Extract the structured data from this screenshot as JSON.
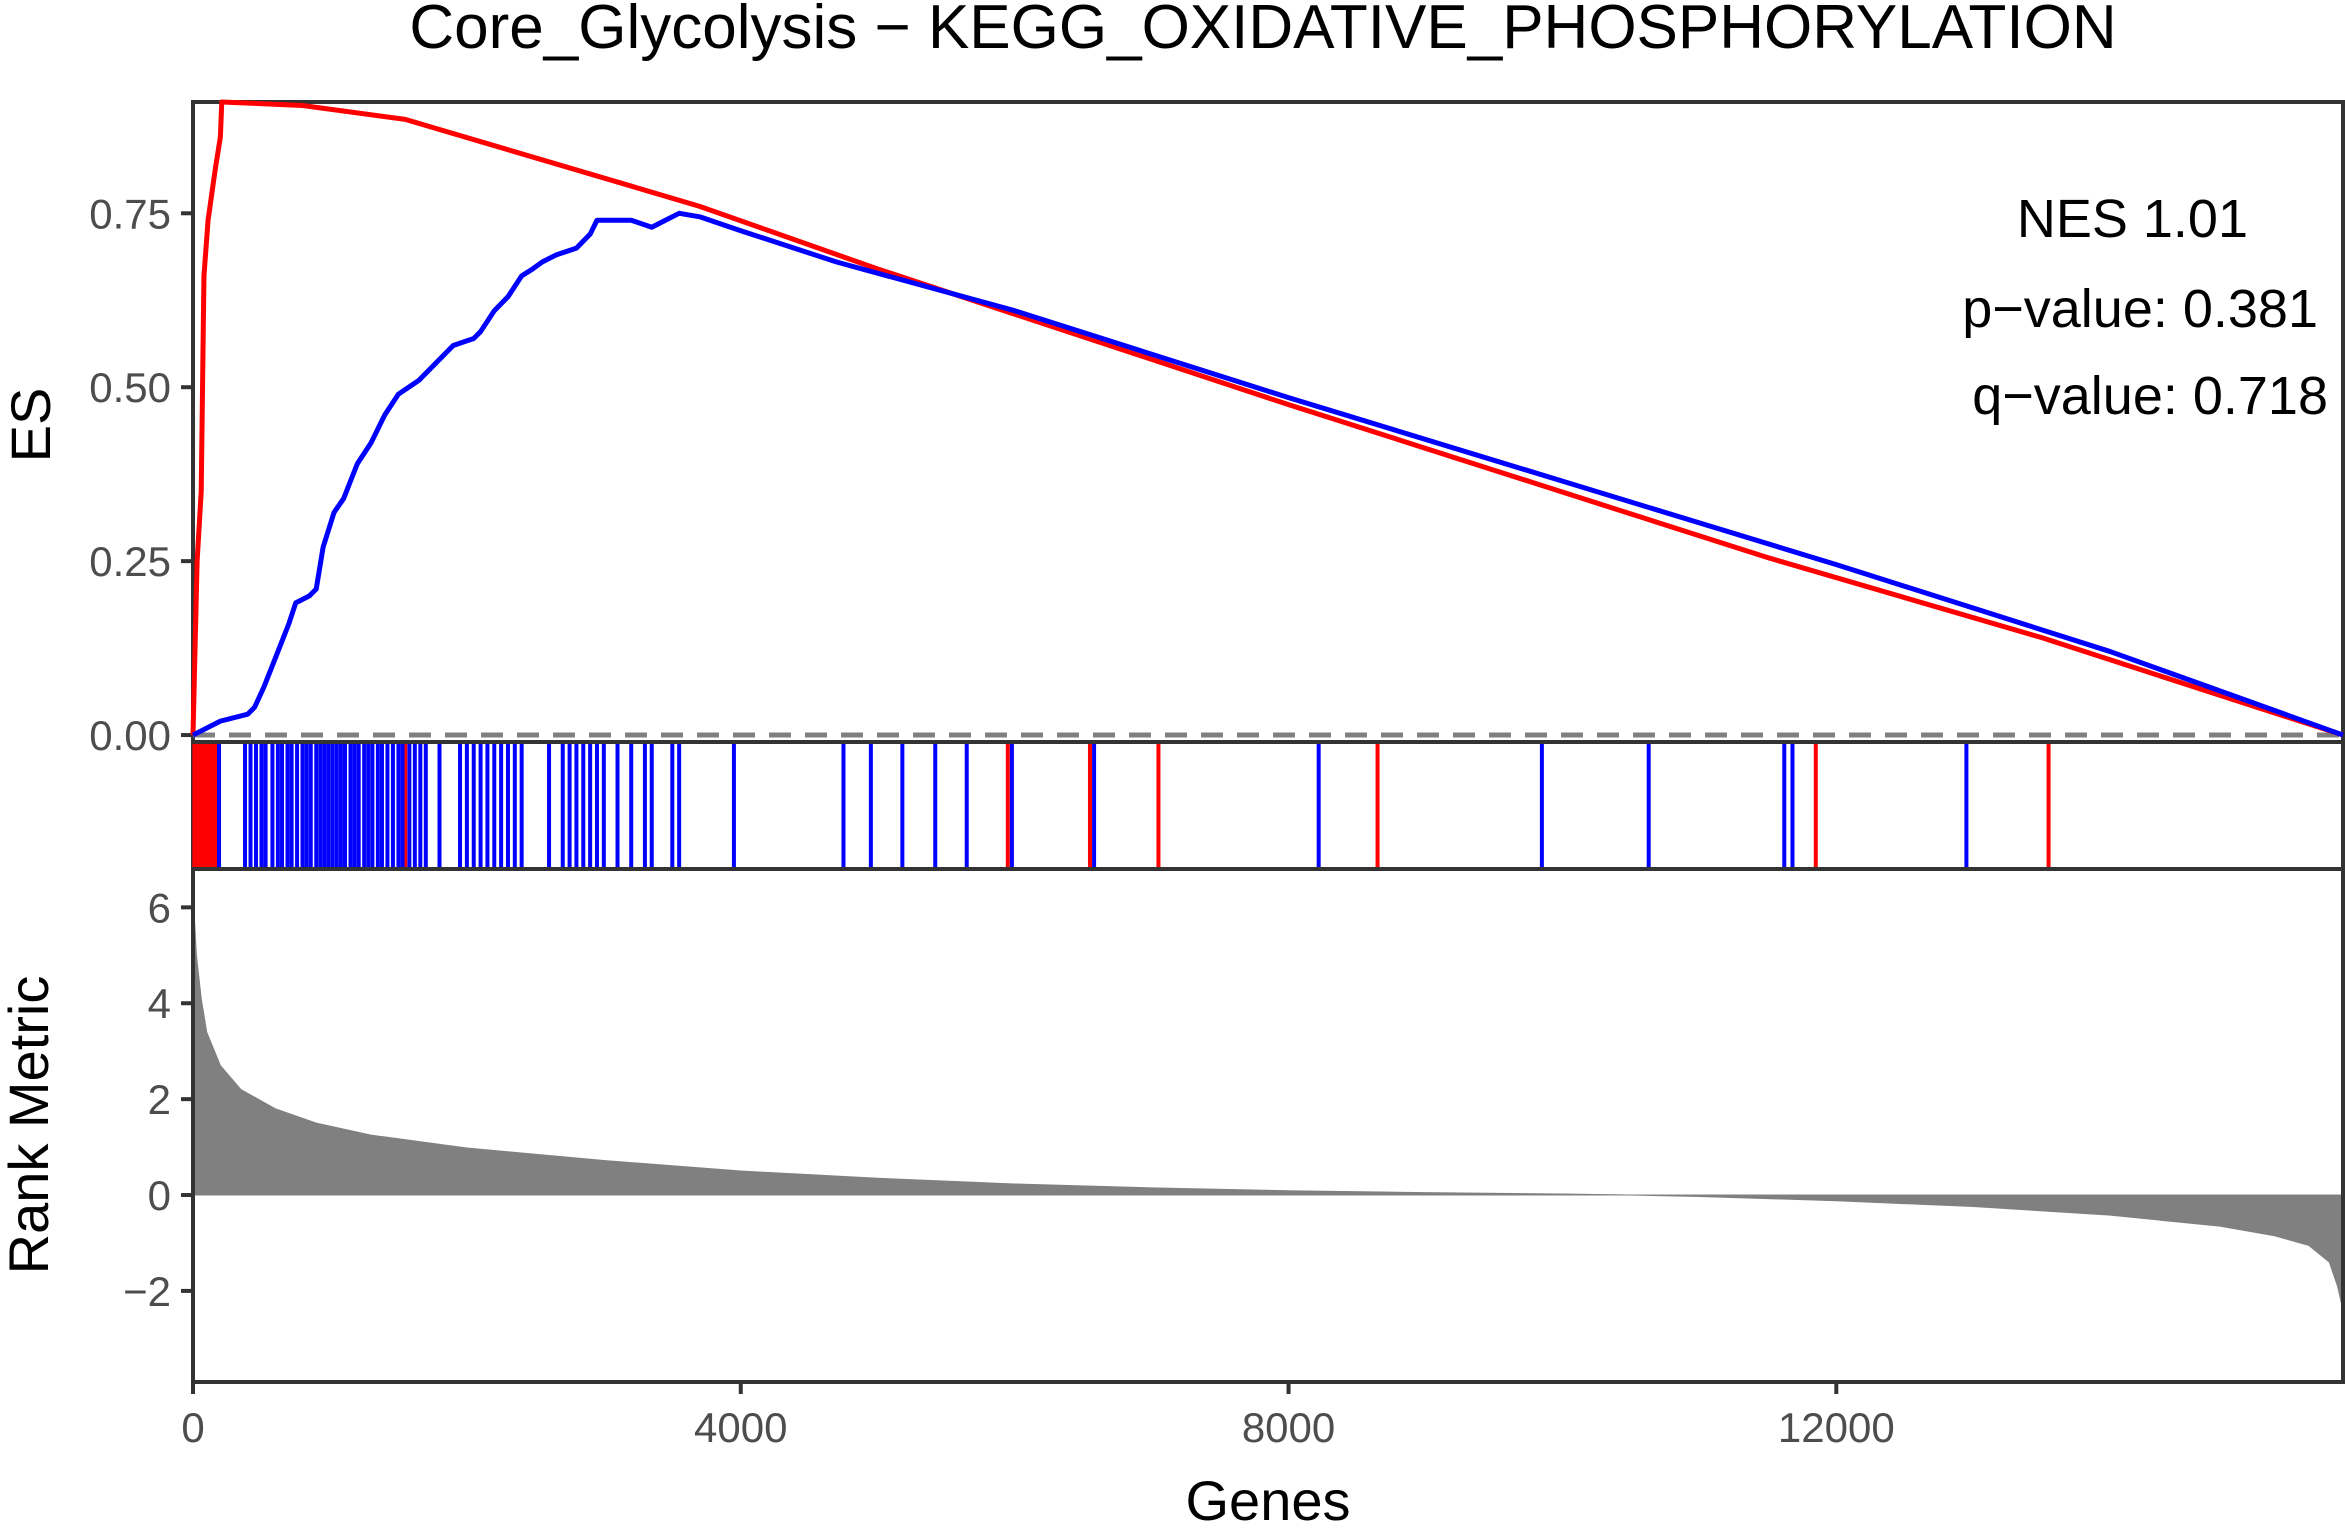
{
  "chart_data": {
    "type": "line",
    "title": "Core_Glycolysis − KEGG_OXIDATIVE_PHOSPHORYLATION",
    "xlabel": "Genes",
    "xlim": [
      0,
      15700
    ],
    "x_ticks": [
      0,
      4000,
      8000,
      12000
    ],
    "x_tick_labels": [
      "0",
      "4000",
      "8000",
      "12000"
    ],
    "grid": false,
    "legend": "none",
    "annotations": {
      "nes": "NES 1.01",
      "pvalue": "p−value: 0.381",
      "qvalue": "q−value: 0.718"
    },
    "es_panel": {
      "ylabel": "ES",
      "ylim": [
        -0.01,
        0.91
      ],
      "y_ticks": [
        0,
        0.25,
        0.5,
        0.75
      ],
      "y_tick_labels": [
        "0.00",
        "0.25",
        "0.50",
        "0.75"
      ],
      "zero_line": "dashed",
      "series": [
        {
          "color": "#ff0000",
          "points": [
            [
              0,
              0
            ],
            [
              30,
              0.25
            ],
            [
              60,
              0.35
            ],
            [
              80,
              0.66
            ],
            [
              110,
              0.74
            ],
            [
              160,
              0.81
            ],
            [
              200,
              0.86
            ],
            [
              210,
              0.91
            ],
            [
              800,
              0.905
            ],
            [
              1550,
              0.885
            ],
            [
              3700,
              0.76
            ],
            [
              5000,
              0.67
            ],
            [
              8000,
              0.475
            ],
            [
              11500,
              0.255
            ],
            [
              13500,
              0.14
            ],
            [
              15700,
              0
            ]
          ]
        },
        {
          "color": "#0000ff",
          "points": [
            [
              0,
              0
            ],
            [
              200,
              0.02
            ],
            [
              400,
              0.03
            ],
            [
              450,
              0.04
            ],
            [
              520,
              0.07
            ],
            [
              600,
              0.11
            ],
            [
              700,
              0.16
            ],
            [
              750,
              0.19
            ],
            [
              850,
              0.2
            ],
            [
              900,
              0.21
            ],
            [
              950,
              0.27
            ],
            [
              1030,
              0.32
            ],
            [
              1100,
              0.34
            ],
            [
              1140,
              0.36
            ],
            [
              1200,
              0.39
            ],
            [
              1300,
              0.42
            ],
            [
              1400,
              0.46
            ],
            [
              1500,
              0.49
            ],
            [
              1650,
              0.51
            ],
            [
              1750,
              0.53
            ],
            [
              1900,
              0.56
            ],
            [
              2050,
              0.57
            ],
            [
              2100,
              0.58
            ],
            [
              2200,
              0.61
            ],
            [
              2300,
              0.63
            ],
            [
              2400,
              0.66
            ],
            [
              2480,
              0.67
            ],
            [
              2550,
              0.68
            ],
            [
              2650,
              0.69
            ],
            [
              2800,
              0.7
            ],
            [
              2900,
              0.72
            ],
            [
              2950,
              0.74
            ],
            [
              3200,
              0.74
            ],
            [
              3350,
              0.73
            ],
            [
              3450,
              0.74
            ],
            [
              3550,
              0.75
            ],
            [
              3700,
              0.745
            ],
            [
              4000,
              0.725
            ],
            [
              4700,
              0.68
            ],
            [
              6000,
              0.61
            ],
            [
              8000,
              0.485
            ],
            [
              10000,
              0.365
            ],
            [
              12000,
              0.245
            ],
            [
              14000,
              0.12
            ],
            [
              15700,
              0
            ]
          ]
        }
      ]
    },
    "hits_panel": {
      "red_hits": [
        10,
        25,
        40,
        55,
        70,
        90,
        110,
        130,
        150,
        170,
        800,
        1550,
        5950,
        6550,
        7050,
        8650,
        11850,
        13550
      ],
      "blue_hits": [
        190,
        380,
        420,
        460,
        500,
        530,
        580,
        620,
        650,
        690,
        720,
        760,
        800,
        830,
        860,
        900,
        930,
        960,
        990,
        1020,
        1050,
        1080,
        1110,
        1150,
        1180,
        1210,
        1250,
        1280,
        1310,
        1350,
        1380,
        1420,
        1460,
        1500,
        1530,
        1580,
        1620,
        1660,
        1700,
        1800,
        1950,
        2000,
        2050,
        2100,
        2150,
        2200,
        2250,
        2300,
        2350,
        2400,
        2600,
        2700,
        2750,
        2800,
        2850,
        2900,
        2950,
        3000,
        3100,
        3200,
        3300,
        3350,
        3500,
        3550,
        3950,
        4750,
        4950,
        5180,
        5420,
        5650,
        5980,
        6580,
        8220,
        9850,
        10630,
        11620,
        11680,
        12950
      ]
    },
    "rank_panel": {
      "ylabel": "Rank Metric",
      "ylim": [
        -3.9,
        6.8
      ],
      "y_ticks": [
        -2,
        0,
        2,
        4,
        6
      ],
      "y_tick_labels": [
        "−2",
        "0",
        "2",
        "4",
        "6"
      ],
      "fill_color": "#808080",
      "points": [
        [
          0,
          6.3
        ],
        [
          25,
          5
        ],
        [
          60,
          4.1
        ],
        [
          100,
          3.4
        ],
        [
          200,
          2.7
        ],
        [
          350,
          2.2
        ],
        [
          600,
          1.8
        ],
        [
          900,
          1.5
        ],
        [
          1300,
          1.25
        ],
        [
          2000,
          0.98
        ],
        [
          3000,
          0.72
        ],
        [
          4000,
          0.5
        ],
        [
          5000,
          0.35
        ],
        [
          6000,
          0.23
        ],
        [
          7000,
          0.15
        ],
        [
          8000,
          0.09
        ],
        [
          9000,
          0.05
        ],
        [
          10000,
          0.02
        ],
        [
          10500,
          0
        ],
        [
          11000,
          -0.03
        ],
        [
          12000,
          -0.12
        ],
        [
          13000,
          -0.24
        ],
        [
          14000,
          -0.42
        ],
        [
          14800,
          -0.65
        ],
        [
          15200,
          -0.85
        ],
        [
          15450,
          -1.05
        ],
        [
          15600,
          -1.4
        ],
        [
          15660,
          -1.9
        ],
        [
          15700,
          -2.4
        ]
      ]
    }
  }
}
